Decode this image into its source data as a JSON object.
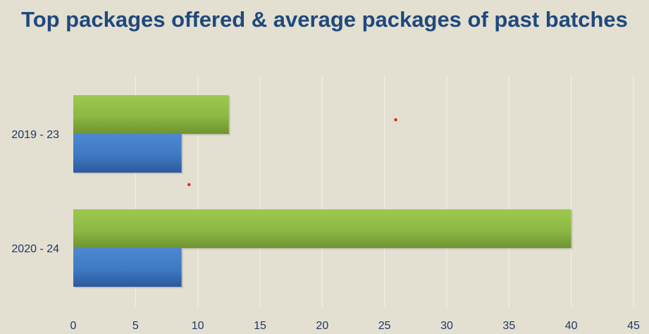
{
  "chart_data": {
    "type": "bar",
    "orientation": "horizontal",
    "title": "Top packages offered & average packages of past batches",
    "xlabel": "",
    "ylabel": "",
    "categories": [
      "2019 - 23",
      "2020 - 24"
    ],
    "series": [
      {
        "color": "#8cb843",
        "values": [
          12.5,
          40
        ]
      },
      {
        "color": "#3f79c4",
        "values": [
          8.7,
          8.7
        ]
      }
    ],
    "xlim": [
      0,
      45
    ],
    "xticks": [
      0,
      5,
      10,
      15,
      20,
      25,
      30,
      35,
      40,
      45
    ],
    "grid": true,
    "legend": "none"
  },
  "colors": {
    "background": "#e3dfd1",
    "title": "#1f497d",
    "gridline": "#f4f2ea",
    "marker": "#e8211f"
  }
}
